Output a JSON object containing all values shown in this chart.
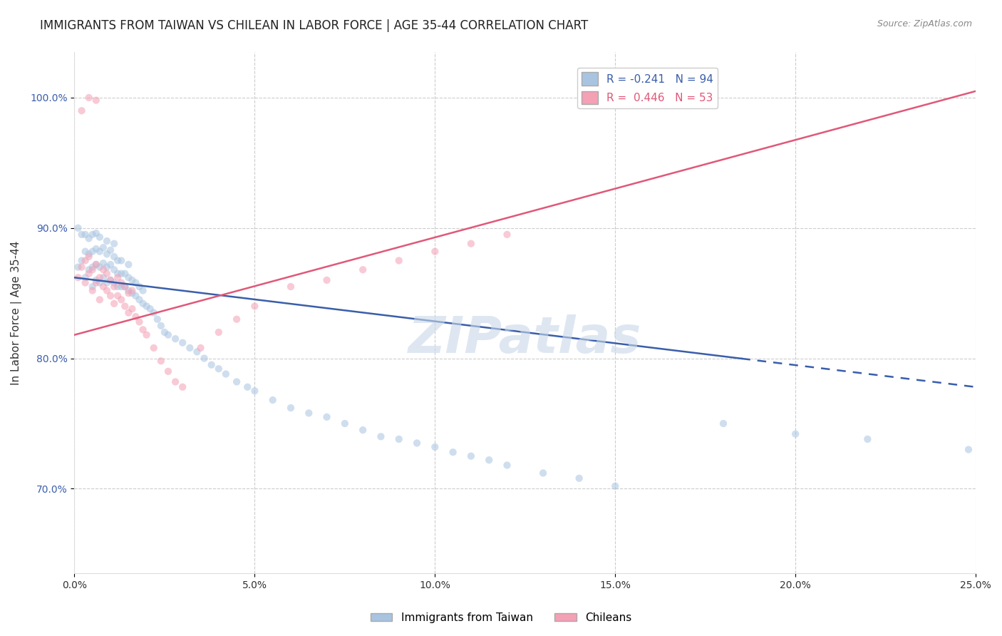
{
  "title": "IMMIGRANTS FROM TAIWAN VS CHILEAN IN LABOR FORCE | AGE 35-44 CORRELATION CHART",
  "source": "Source: ZipAtlas.com",
  "ylabel": "In Labor Force | Age 35-44",
  "xlim": [
    0.0,
    0.25
  ],
  "ylim": [
    0.635,
    1.035
  ],
  "xticks": [
    0.0,
    0.05,
    0.1,
    0.15,
    0.2,
    0.25
  ],
  "xtick_labels": [
    "0.0%",
    "5.0%",
    "10.0%",
    "15.0%",
    "20.0%",
    "25.0%"
  ],
  "yticks": [
    0.7,
    0.8,
    0.9,
    1.0
  ],
  "ytick_labels": [
    "70.0%",
    "80.0%",
    "90.0%",
    "100.0%"
  ],
  "taiwan_color": "#a8c4e0",
  "chilean_color": "#f4a0b5",
  "taiwan_line_color": "#3a5eaa",
  "chilean_line_color": "#e05878",
  "taiwan_R": -0.241,
  "taiwan_N": 94,
  "chilean_R": 0.446,
  "chilean_N": 53,
  "legend_label_taiwan": "Immigrants from Taiwan",
  "legend_label_chilean": "Chileans",
  "taiwan_x": [
    0.001,
    0.001,
    0.002,
    0.002,
    0.003,
    0.003,
    0.003,
    0.004,
    0.004,
    0.004,
    0.005,
    0.005,
    0.005,
    0.005,
    0.006,
    0.006,
    0.006,
    0.006,
    0.007,
    0.007,
    0.007,
    0.007,
    0.008,
    0.008,
    0.008,
    0.009,
    0.009,
    0.009,
    0.009,
    0.01,
    0.01,
    0.01,
    0.011,
    0.011,
    0.011,
    0.011,
    0.012,
    0.012,
    0.012,
    0.013,
    0.013,
    0.013,
    0.014,
    0.014,
    0.015,
    0.015,
    0.015,
    0.016,
    0.016,
    0.017,
    0.017,
    0.018,
    0.018,
    0.019,
    0.019,
    0.02,
    0.021,
    0.022,
    0.023,
    0.024,
    0.025,
    0.026,
    0.028,
    0.03,
    0.032,
    0.034,
    0.036,
    0.038,
    0.04,
    0.042,
    0.045,
    0.048,
    0.05,
    0.055,
    0.06,
    0.065,
    0.07,
    0.075,
    0.08,
    0.085,
    0.09,
    0.095,
    0.1,
    0.105,
    0.11,
    0.115,
    0.12,
    0.13,
    0.14,
    0.15,
    0.18,
    0.2,
    0.22,
    0.248
  ],
  "taiwan_y": [
    0.87,
    0.9,
    0.875,
    0.895,
    0.862,
    0.882,
    0.895,
    0.868,
    0.88,
    0.892,
    0.855,
    0.87,
    0.882,
    0.895,
    0.86,
    0.872,
    0.884,
    0.896,
    0.858,
    0.87,
    0.882,
    0.893,
    0.862,
    0.873,
    0.885,
    0.858,
    0.87,
    0.88,
    0.89,
    0.86,
    0.872,
    0.883,
    0.858,
    0.868,
    0.878,
    0.888,
    0.855,
    0.865,
    0.875,
    0.855,
    0.865,
    0.875,
    0.855,
    0.865,
    0.852,
    0.862,
    0.872,
    0.85,
    0.86,
    0.848,
    0.858,
    0.845,
    0.855,
    0.842,
    0.852,
    0.84,
    0.838,
    0.835,
    0.83,
    0.825,
    0.82,
    0.818,
    0.815,
    0.812,
    0.808,
    0.805,
    0.8,
    0.795,
    0.792,
    0.788,
    0.782,
    0.778,
    0.775,
    0.768,
    0.762,
    0.758,
    0.755,
    0.75,
    0.745,
    0.74,
    0.738,
    0.735,
    0.732,
    0.728,
    0.725,
    0.722,
    0.718,
    0.712,
    0.708,
    0.702,
    0.75,
    0.742,
    0.738,
    0.73
  ],
  "chilean_x": [
    0.001,
    0.002,
    0.003,
    0.003,
    0.004,
    0.004,
    0.005,
    0.005,
    0.006,
    0.006,
    0.007,
    0.007,
    0.008,
    0.008,
    0.009,
    0.009,
    0.01,
    0.01,
    0.011,
    0.011,
    0.012,
    0.012,
    0.013,
    0.013,
    0.014,
    0.014,
    0.015,
    0.015,
    0.016,
    0.016,
    0.017,
    0.018,
    0.019,
    0.02,
    0.022,
    0.024,
    0.026,
    0.028,
    0.03,
    0.035,
    0.04,
    0.045,
    0.05,
    0.06,
    0.07,
    0.08,
    0.09,
    0.1,
    0.11,
    0.12,
    0.002,
    0.004,
    0.006
  ],
  "chilean_y": [
    0.862,
    0.87,
    0.858,
    0.875,
    0.865,
    0.878,
    0.852,
    0.868,
    0.858,
    0.872,
    0.845,
    0.862,
    0.855,
    0.868,
    0.852,
    0.865,
    0.848,
    0.86,
    0.842,
    0.855,
    0.848,
    0.862,
    0.845,
    0.858,
    0.84,
    0.855,
    0.835,
    0.85,
    0.838,
    0.852,
    0.832,
    0.828,
    0.822,
    0.818,
    0.808,
    0.798,
    0.79,
    0.782,
    0.778,
    0.808,
    0.82,
    0.83,
    0.84,
    0.855,
    0.86,
    0.868,
    0.875,
    0.882,
    0.888,
    0.895,
    0.99,
    1.0,
    0.998
  ],
  "background_color": "#ffffff",
  "grid_color": "#cccccc",
  "watermark_text": "ZIPatlas",
  "watermark_color": "#c8d8e8",
  "title_fontsize": 12,
  "axis_label_fontsize": 11,
  "tick_fontsize": 10,
  "legend_fontsize": 11,
  "source_fontsize": 9,
  "scatter_size": 55,
  "scatter_alpha": 0.55,
  "line_width": 1.8,
  "taiwan_line_y0": 0.862,
  "taiwan_line_y1": 0.778,
  "chilean_line_y0": 0.818,
  "chilean_line_y1": 1.005
}
